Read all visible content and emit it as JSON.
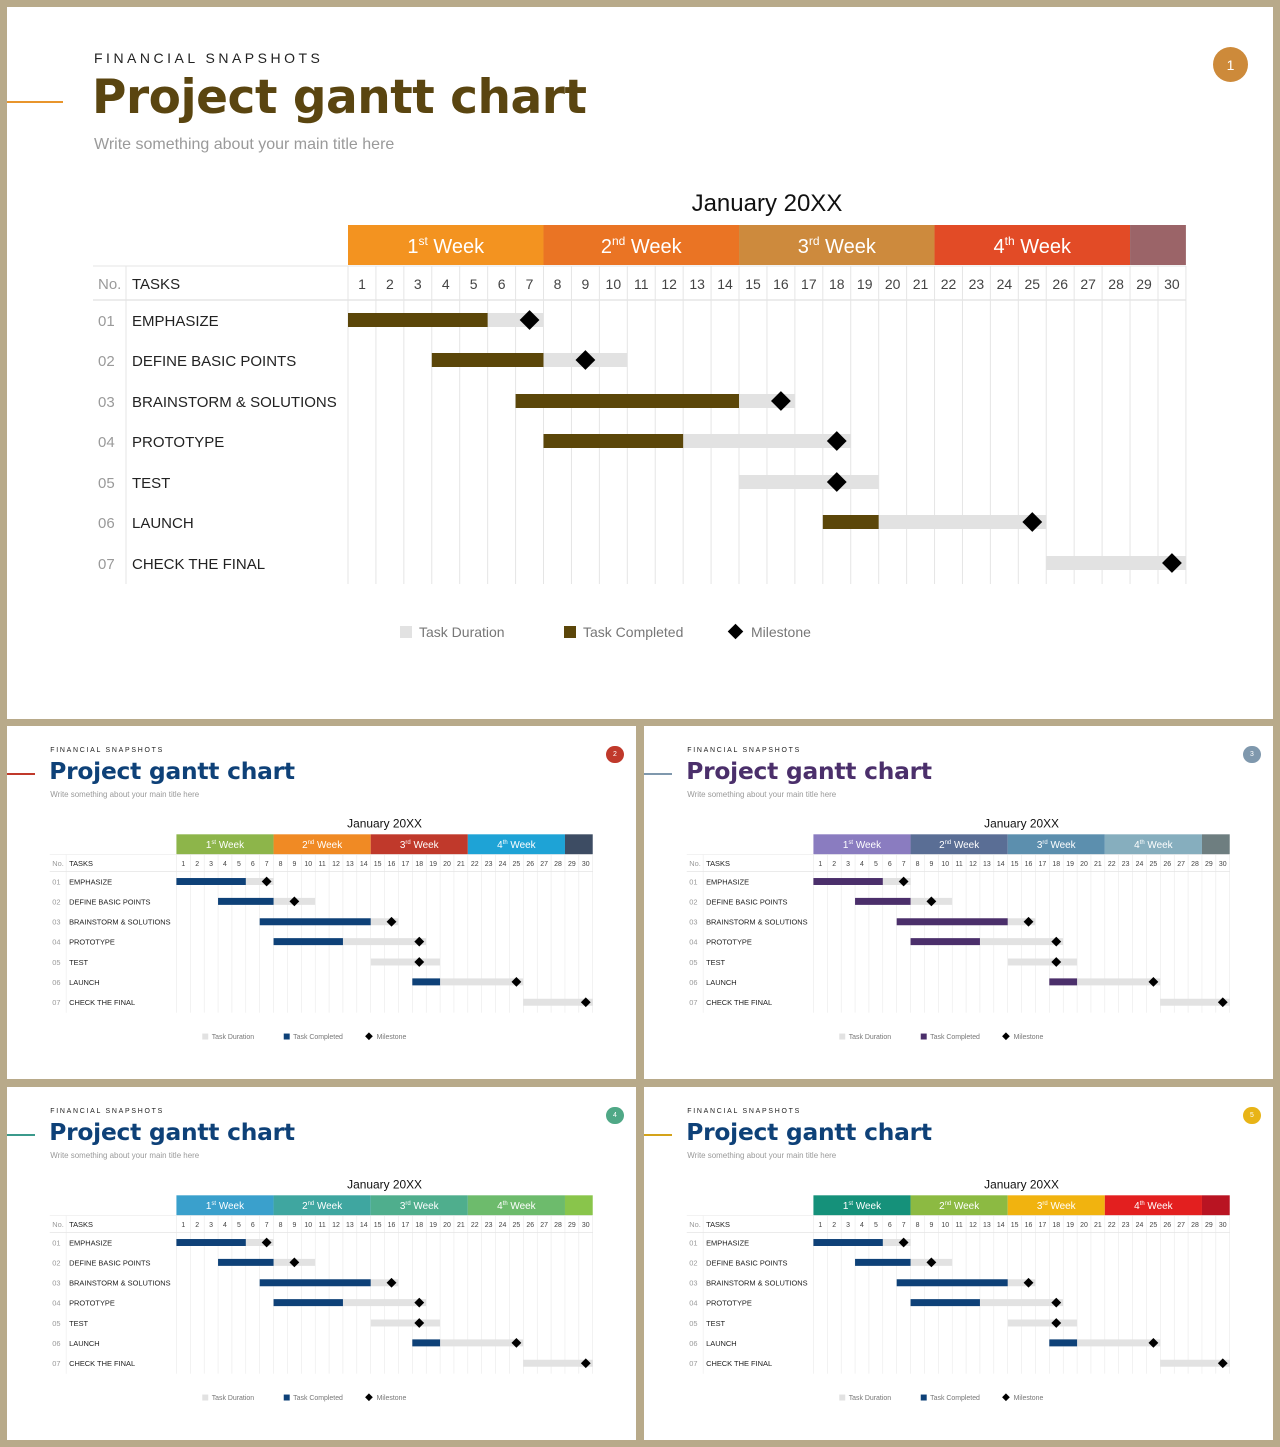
{
  "slides": [
    {
      "kicker": "FINANCIAL SNAPSHOTS",
      "title": "Project gantt chart",
      "subtitle": "Write something about your main title here",
      "badge": "1",
      "colors": {
        "title": "#5a4510",
        "accent_line": "#e8952c",
        "badge": "#cd8a3a",
        "completed": "#5b4609",
        "duration": "#e2e2e2",
        "milestone": "#000000",
        "weeks": [
          "#f39320",
          "#ea7424",
          "#cd8a3d",
          "#e24b26",
          "#9b6468"
        ]
      }
    },
    {
      "kicker": "FINANCIAL SNAPSHOTS",
      "title": "Project gantt chart",
      "subtitle": "Write something about your main title here",
      "badge": "2",
      "colors": {
        "title": "#0e4178",
        "accent_line": "#c0392b",
        "badge": "#c0392b",
        "completed": "#0e4178",
        "duration": "#e2e2e2",
        "milestone": "#000000",
        "weeks": [
          "#8db54a",
          "#f08a24",
          "#c0392b",
          "#1ea3d6",
          "#3d4c63"
        ]
      }
    },
    {
      "kicker": "FINANCIAL SNAPSHOTS",
      "title": "Project gantt chart",
      "subtitle": "Write something about your main title here",
      "badge": "3",
      "colors": {
        "title": "#4b2f6b",
        "accent_line": "#7f98ad",
        "badge": "#7f98ad",
        "completed": "#4b2f6b",
        "duration": "#e2e2e2",
        "milestone": "#000000",
        "weeks": [
          "#8a7cc0",
          "#5a6e95",
          "#5c8fae",
          "#86aebe",
          "#6e7e80"
        ]
      }
    },
    {
      "kicker": "FINANCIAL SNAPSHOTS",
      "title": "Project gantt chart",
      "subtitle": "Write something about your main title here",
      "badge": "4",
      "colors": {
        "title": "#0e4178",
        "accent_line": "#3b9a8c",
        "badge": "#4fa886",
        "completed": "#0e4178",
        "duration": "#e2e2e2",
        "milestone": "#000000",
        "weeks": [
          "#3aa0cc",
          "#3fa6a0",
          "#4fae8d",
          "#6dbb6c",
          "#89c54b"
        ]
      }
    },
    {
      "kicker": "FINANCIAL SNAPSHOTS",
      "title": "Project gantt chart",
      "subtitle": "Write something about your main title here",
      "badge": "5",
      "colors": {
        "title": "#0e4178",
        "accent_line": "#d4a31a",
        "badge": "#e8b417",
        "completed": "#0e4178",
        "duration": "#e2e2e2",
        "milestone": "#000000",
        "weeks": [
          "#15917a",
          "#8cba42",
          "#f1b30f",
          "#e31f1f",
          "#b91422"
        ]
      }
    }
  ],
  "chart_data": {
    "type": "gantt",
    "title": "January 20XX",
    "week_labels": [
      {
        "prefix": "1",
        "sup": "st",
        "suffix": " Week"
      },
      {
        "prefix": "2",
        "sup": "nd",
        "suffix": " Week"
      },
      {
        "prefix": "3",
        "sup": "rd",
        "suffix": " Week"
      },
      {
        "prefix": "4",
        "sup": "th",
        "suffix": " Week"
      }
    ],
    "week_spans": [
      [
        1,
        7
      ],
      [
        8,
        14
      ],
      [
        15,
        21
      ],
      [
        22,
        28
      ],
      [
        29,
        30
      ]
    ],
    "days": [
      1,
      2,
      3,
      4,
      5,
      6,
      7,
      8,
      9,
      10,
      11,
      12,
      13,
      14,
      15,
      16,
      17,
      18,
      19,
      20,
      21,
      22,
      23,
      24,
      25,
      26,
      27,
      28,
      29,
      30
    ],
    "header": {
      "no": "No.",
      "tasks": "TASKS"
    },
    "tasks": [
      {
        "no": "01",
        "name": "EMPHASIZE",
        "duration": [
          1,
          7
        ],
        "completed": [
          1,
          5
        ],
        "milestone": 7.5
      },
      {
        "no": "02",
        "name": "DEFINE BASIC POINTS",
        "duration": [
          4,
          10
        ],
        "completed": [
          4,
          7
        ],
        "milestone": 9.5
      },
      {
        "no": "03",
        "name": "BRAINSTORM & SOLUTIONS",
        "duration": [
          7,
          16
        ],
        "completed": [
          7,
          14
        ],
        "milestone": 16.5
      },
      {
        "no": "04",
        "name": "PROTOTYPE",
        "duration": [
          8,
          18
        ],
        "completed": [
          8,
          12
        ],
        "milestone": 18.5
      },
      {
        "no": "05",
        "name": "TEST",
        "duration": [
          15,
          19
        ],
        "completed": null,
        "milestone": 18.5
      },
      {
        "no": "06",
        "name": "LAUNCH",
        "duration": [
          18,
          25
        ],
        "completed": [
          18,
          19
        ],
        "milestone": 25.5
      },
      {
        "no": "07",
        "name": "CHECK THE FINAL",
        "duration": [
          26,
          30
        ],
        "completed": null,
        "milestone": 30.5
      }
    ],
    "legend": [
      "Task Duration",
      "Task Completed",
      "Milestone"
    ]
  }
}
